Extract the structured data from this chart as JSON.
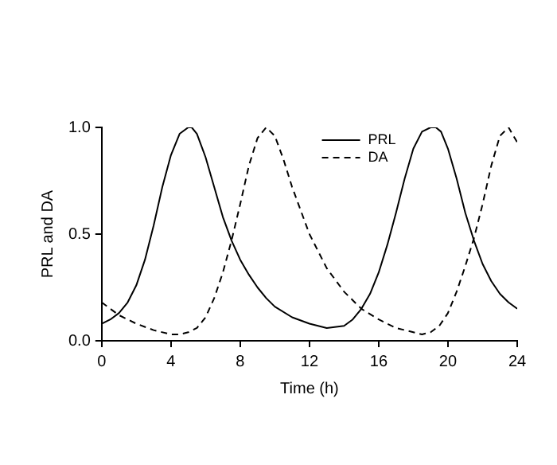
{
  "chart_data": {
    "type": "line",
    "xlabel": "Time (h)",
    "ylabel": "PRL and DA",
    "xlim": [
      0,
      24
    ],
    "xticks": [
      0,
      4,
      8,
      12,
      16,
      20,
      24
    ],
    "ylim": [
      0,
      1
    ],
    "yticks": [
      {
        "value": 0,
        "label": "0.0"
      },
      {
        "value": 0.5,
        "label": "0.5"
      },
      {
        "value": 1,
        "label": "1.0"
      }
    ],
    "grid": false,
    "legend": "top right",
    "marker": "none",
    "series": [
      {
        "name": "PRL",
        "color": "#000000",
        "line_style": "solid",
        "x": [
          0,
          0.5,
          1,
          1.5,
          2,
          2.5,
          3,
          3.5,
          4,
          4.5,
          5,
          5.2,
          5.5,
          6,
          6.5,
          7,
          7.5,
          8,
          8.5,
          9,
          9.5,
          10,
          11,
          12,
          13,
          14,
          14.5,
          15,
          15.5,
          16,
          16.5,
          17,
          17.5,
          18,
          18.5,
          19,
          19.3,
          19.6,
          20,
          20.5,
          21,
          21.5,
          22,
          22.5,
          23,
          23.5,
          24
        ],
        "values": [
          0.08,
          0.1,
          0.13,
          0.18,
          0.26,
          0.38,
          0.54,
          0.72,
          0.87,
          0.97,
          1.0,
          1.0,
          0.97,
          0.86,
          0.72,
          0.58,
          0.47,
          0.38,
          0.31,
          0.25,
          0.2,
          0.16,
          0.11,
          0.08,
          0.06,
          0.07,
          0.1,
          0.15,
          0.22,
          0.32,
          0.45,
          0.6,
          0.76,
          0.9,
          0.98,
          1.0,
          1.0,
          0.98,
          0.9,
          0.76,
          0.6,
          0.47,
          0.36,
          0.28,
          0.22,
          0.18,
          0.15
        ]
      },
      {
        "name": "DA",
        "color": "#000000",
        "line_style": "dashed",
        "x": [
          0,
          1,
          2,
          3,
          4,
          4.5,
          5,
          5.5,
          6,
          6.5,
          7,
          7.5,
          8,
          8.5,
          9,
          9.5,
          10,
          10.5,
          11,
          12,
          13,
          14,
          15,
          16,
          17,
          18,
          18.5,
          19,
          19.5,
          20,
          20.5,
          21,
          21.5,
          22,
          22.5,
          23,
          23.5,
          24
        ],
        "values": [
          0.18,
          0.12,
          0.08,
          0.05,
          0.03,
          0.03,
          0.04,
          0.06,
          0.11,
          0.2,
          0.32,
          0.47,
          0.64,
          0.82,
          0.95,
          1.0,
          0.96,
          0.85,
          0.72,
          0.5,
          0.34,
          0.23,
          0.15,
          0.1,
          0.06,
          0.04,
          0.03,
          0.04,
          0.07,
          0.13,
          0.23,
          0.35,
          0.48,
          0.64,
          0.82,
          0.96,
          1.0,
          0.93
        ]
      }
    ]
  }
}
